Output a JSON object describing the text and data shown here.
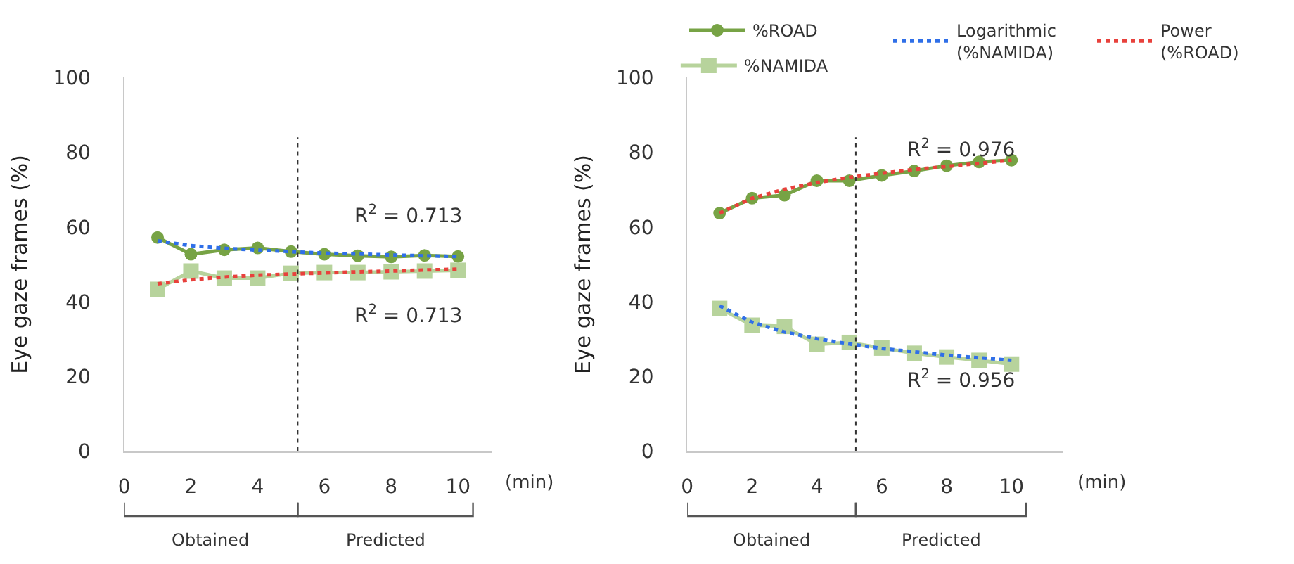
{
  "chart_data": [
    {
      "type": "line",
      "xlabel": "(min)",
      "ylabel": "Eye gaze frames (%)",
      "x": [
        1,
        2,
        3,
        4,
        5,
        6,
        7,
        8,
        9,
        10
      ],
      "xlim": [
        0,
        11
      ],
      "ylim": [
        0,
        100
      ],
      "xticks": [
        0,
        2,
        4,
        6,
        8,
        10
      ],
      "yticks": [
        0,
        20,
        40,
        60,
        80,
        100
      ],
      "series": [
        {
          "color": "#77a345",
          "marker": "circle",
          "line_style": "solid",
          "values": [
            57.2,
            52.7,
            53.9,
            54.4,
            53.4,
            52.7,
            52.3,
            52.0,
            52.4,
            52.1
          ]
        },
        {
          "color": "#b7d39c",
          "marker": "square",
          "line_style": "solid",
          "values": [
            43.3,
            48.2,
            46.3,
            46.3,
            47.6,
            47.8,
            47.8,
            48.0,
            48.2,
            48.4
          ]
        },
        {
          "color": "#2f6fe8",
          "marker": "none",
          "line_style": "dotted",
          "values": [
            56.3,
            55.0,
            54.3,
            53.8,
            53.4,
            53.0,
            52.8,
            52.5,
            52.3,
            52.1
          ]
        },
        {
          "color": "#e8413c",
          "marker": "none",
          "line_style": "dotted",
          "values": [
            44.8,
            45.9,
            46.6,
            47.1,
            47.4,
            47.7,
            48.0,
            48.2,
            48.5,
            48.7
          ]
        }
      ],
      "ref_lines": [
        {
          "axis": "x",
          "value": 5.2,
          "line_style": "dotted",
          "color": "#333333"
        }
      ],
      "annotations": [
        "R$^{2}$ = 0.713",
        "R$^{2}$ = 0.713",
        "Obtained",
        "Predicted"
      ]
    },
    {
      "type": "line",
      "xlabel": "(min)",
      "ylabel": "Eye gaze frames (%)",
      "x": [
        1,
        2,
        3,
        4,
        5,
        6,
        7,
        8,
        9,
        10
      ],
      "xlim": [
        0,
        11.6
      ],
      "ylim": [
        0,
        100
      ],
      "xticks": [
        0,
        2,
        4,
        6,
        8,
        10
      ],
      "yticks": [
        0,
        20,
        40,
        60,
        80,
        100
      ],
      "legend": "top right",
      "series": [
        {
          "name": "%ROAD",
          "color": "#77a345",
          "marker": "circle",
          "line_style": "solid",
          "values": [
            63.7,
            67.7,
            68.5,
            72.4,
            72.4,
            73.8,
            75.0,
            76.4,
            77.4,
            77.9
          ]
        },
        {
          "name": "%NAMIDA",
          "color": "#b7d39c",
          "marker": "square",
          "line_style": "solid",
          "values": [
            38.2,
            33.7,
            33.4,
            28.6,
            29.1,
            27.6,
            26.2,
            25.2,
            24.3,
            23.3
          ]
        },
        {
          "name": "Logarithmic (%NAMIDA)",
          "color": "#2f6fe8",
          "marker": "none",
          "line_style": "dotted",
          "values": [
            38.9,
            34.5,
            31.9,
            30.1,
            28.7,
            27.5,
            26.6,
            25.7,
            25.0,
            24.3
          ]
        },
        {
          "name": "Power (%ROAD)",
          "color": "#e8413c",
          "marker": "none",
          "line_style": "dotted",
          "values": [
            63.7,
            67.7,
            70.1,
            71.9,
            73.3,
            74.4,
            75.4,
            76.2,
            77.0,
            77.9
          ]
        }
      ],
      "ref_lines": [
        {
          "axis": "x",
          "value": 5.2,
          "line_style": "dotted",
          "color": "#333333"
        }
      ],
      "annotations": [
        "R$^{2}$ = 0.976",
        "R$^{2}$ = 0.956",
        "Obtained",
        "Predicted"
      ]
    }
  ]
}
